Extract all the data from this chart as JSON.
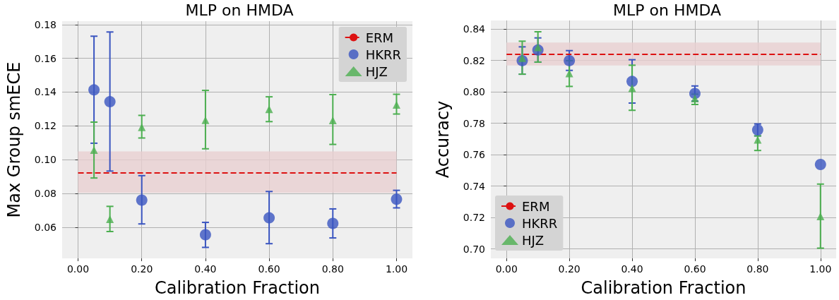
{
  "chart_data": [
    {
      "type": "scatter",
      "title": "MLP on HMDA",
      "xlabel": "Calibration Fraction",
      "ylabel": "Max Group smECE",
      "xlim": [
        -0.05,
        1.05
      ],
      "xticks": [
        {
          "value": 0,
          "label": "0.00"
        },
        {
          "value": 0.2,
          "label": "0.20"
        },
        {
          "value": 0.4,
          "label": "0.40"
        },
        {
          "value": 0.6,
          "label": "0.60"
        },
        {
          "value": 0.8,
          "label": "0.80"
        },
        {
          "value": 1,
          "label": "1.00"
        }
      ],
      "ylim": [
        0.0415,
        0.182
      ],
      "yticks": [
        {
          "value": 0.06,
          "label": "0.06"
        },
        {
          "value": 0.08,
          "label": "0.08"
        },
        {
          "value": 0.1,
          "label": "0.10"
        },
        {
          "value": 0.12,
          "label": "0.12"
        },
        {
          "value": 0.14,
          "label": "0.14"
        },
        {
          "value": 0.16,
          "label": "0.16"
        },
        {
          "value": 0.18,
          "label": "0.18"
        }
      ],
      "grid": true,
      "legend": "top right",
      "series": [
        {
          "name": "HKRR",
          "color": "#3a55c0",
          "marker": "circle",
          "x": [
            0.05,
            0.1,
            0.2,
            0.4,
            0.6,
            0.8,
            1.0
          ],
          "values": [
            0.1413,
            0.1343,
            0.076,
            0.0555,
            0.0655,
            0.0622,
            0.0765
          ],
          "errors": [
            [
              0.1097,
              0.1731
            ],
            [
              0.0932,
              0.1756
            ],
            [
              0.0619,
              0.0905
            ],
            [
              0.048,
              0.0628
            ],
            [
              0.0502,
              0.0811
            ],
            [
              0.0536,
              0.0708
            ],
            [
              0.0714,
              0.0818
            ]
          ]
        },
        {
          "name": "HJZ",
          "color": "#4caf50",
          "marker": "triangle",
          "x": [
            0.05,
            0.1,
            0.2,
            0.4,
            0.6,
            0.8,
            1.0
          ],
          "values": [
            0.1057,
            0.0647,
            0.1192,
            0.1234,
            0.1298,
            0.1232,
            0.1325
          ],
          "errors": [
            [
              0.0891,
              0.1222
            ],
            [
              0.0574,
              0.0723
            ],
            [
              0.1128,
              0.1262
            ],
            [
              0.1064,
              0.141
            ],
            [
              0.1225,
              0.1372
            ],
            [
              0.109,
              0.1385
            ],
            [
              0.127,
              0.1387
            ]
          ]
        }
      ],
      "ref_lines": [
        {
          "axis": "y",
          "value": 0.0923,
          "label": "ERM",
          "color": "#dd1111",
          "line_style": "dashed"
        }
      ],
      "bands": [
        {
          "axis": "y",
          "from": 0.0804,
          "to": 0.1049,
          "color": "#e8cfd1"
        }
      ]
    },
    {
      "type": "scatter",
      "title": "MLP on HMDA",
      "xlabel": "Calibration Fraction",
      "ylabel": "Accuracy",
      "xlim": [
        -0.05,
        1.05
      ],
      "xticks": [
        {
          "value": 0,
          "label": "0.00"
        },
        {
          "value": 0.2,
          "label": "0.20"
        },
        {
          "value": 0.4,
          "label": "0.40"
        },
        {
          "value": 0.6,
          "label": "0.60"
        },
        {
          "value": 0.8,
          "label": "0.80"
        },
        {
          "value": 1,
          "label": "1.00"
        }
      ],
      "ylim": [
        0.694,
        0.8455
      ],
      "yticks": [
        {
          "value": 0.7,
          "label": "0.70"
        },
        {
          "value": 0.72,
          "label": "0.72"
        },
        {
          "value": 0.74,
          "label": "0.74"
        },
        {
          "value": 0.76,
          "label": "0.76"
        },
        {
          "value": 0.78,
          "label": "0.78"
        },
        {
          "value": 0.8,
          "label": "0.80"
        },
        {
          "value": 0.82,
          "label": "0.82"
        },
        {
          "value": 0.84,
          "label": "0.84"
        }
      ],
      "grid": true,
      "legend": "bottom left",
      "series": [
        {
          "name": "HKRR",
          "color": "#3a55c0",
          "marker": "circle",
          "x": [
            0.05,
            0.1,
            0.2,
            0.4,
            0.6,
            0.8,
            1.0
          ],
          "values": [
            0.8199,
            0.8267,
            0.8199,
            0.8067,
            0.799,
            0.7758,
            0.7538
          ],
          "errors": [
            [
              0.8113,
              0.8287
            ],
            [
              0.819,
              0.8344
            ],
            [
              0.8137,
              0.8263
            ],
            [
              0.7929,
              0.8205
            ],
            [
              0.7942,
              0.8038
            ],
            [
              0.772,
              0.7796
            ],
            null
          ]
        },
        {
          "name": "HJZ",
          "color": "#4caf50",
          "marker": "triangle",
          "x": [
            0.05,
            0.1,
            0.2,
            0.4,
            0.6,
            0.8,
            1.0
          ],
          "values": [
            0.8216,
            0.8284,
            0.8118,
            0.8023,
            0.7958,
            0.7695,
            0.7207
          ],
          "errors": [
            [
              0.8113,
              0.8323
            ],
            [
              0.819,
              0.8383
            ],
            [
              0.8035,
              0.8199
            ],
            [
              0.7883,
              0.817
            ],
            [
              0.792,
              0.7986
            ],
            [
              0.7627,
              0.772
            ],
            [
              0.7005,
              0.7413
            ]
          ]
        }
      ],
      "ref_lines": [
        {
          "axis": "y",
          "value": 0.8241,
          "label": "ERM",
          "color": "#dd1111",
          "line_style": "dashed"
        }
      ],
      "bands": [
        {
          "axis": "y",
          "from": 0.8168,
          "to": 0.8315,
          "color": "#e8cfd1"
        }
      ]
    }
  ]
}
